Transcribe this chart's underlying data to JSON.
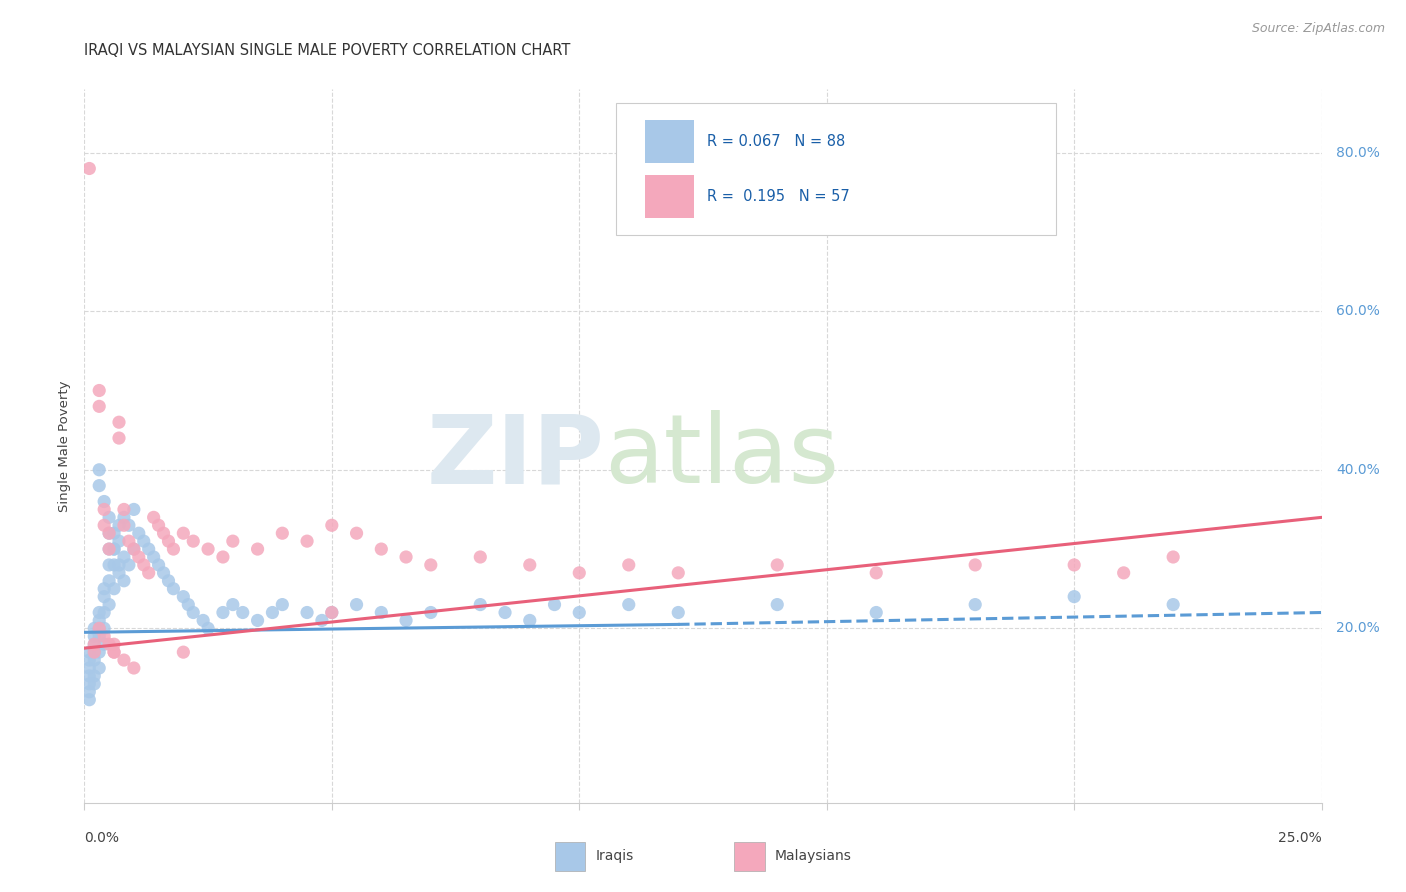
{
  "title": "IRAQI VS MALAYSIAN SINGLE MALE POVERTY CORRELATION CHART",
  "source": "Source: ZipAtlas.com",
  "ylabel": "Single Male Poverty",
  "right_yticks": [
    "80.0%",
    "60.0%",
    "40.0%",
    "20.0%"
  ],
  "right_ytick_vals": [
    0.8,
    0.6,
    0.4,
    0.2
  ],
  "xlim": [
    0.0,
    0.25
  ],
  "ylim": [
    -0.02,
    0.88
  ],
  "iraqis_color": "#a8c8e8",
  "malaysians_color": "#f4a8bc",
  "iraqis_line_color": "#5b9bd5",
  "malaysians_line_color": "#e8607a",
  "background_color": "#ffffff",
  "grid_color": "#d8d8d8",
  "iraqis_R": 0.067,
  "iraqis_N": 88,
  "malaysians_R": 0.195,
  "malaysians_N": 57,
  "iraqis_x": [
    0.001,
    0.001,
    0.001,
    0.001,
    0.001,
    0.001,
    0.001,
    0.002,
    0.002,
    0.002,
    0.002,
    0.002,
    0.002,
    0.002,
    0.003,
    0.003,
    0.003,
    0.003,
    0.003,
    0.003,
    0.004,
    0.004,
    0.004,
    0.004,
    0.004,
    0.005,
    0.005,
    0.005,
    0.005,
    0.006,
    0.006,
    0.006,
    0.006,
    0.007,
    0.007,
    0.007,
    0.008,
    0.008,
    0.009,
    0.009,
    0.01,
    0.01,
    0.011,
    0.012,
    0.013,
    0.014,
    0.015,
    0.016,
    0.017,
    0.018,
    0.02,
    0.021,
    0.022,
    0.024,
    0.025,
    0.028,
    0.03,
    0.032,
    0.035,
    0.038,
    0.04,
    0.045,
    0.048,
    0.05,
    0.055,
    0.06,
    0.065,
    0.07,
    0.08,
    0.085,
    0.09,
    0.095,
    0.1,
    0.11,
    0.12,
    0.14,
    0.16,
    0.18,
    0.2,
    0.22,
    0.003,
    0.003,
    0.004,
    0.005,
    0.005,
    0.006,
    0.007,
    0.008
  ],
  "iraqis_y": [
    0.17,
    0.16,
    0.15,
    0.14,
    0.13,
    0.12,
    0.11,
    0.2,
    0.19,
    0.18,
    0.17,
    0.16,
    0.14,
    0.13,
    0.22,
    0.21,
    0.2,
    0.19,
    0.17,
    0.15,
    0.25,
    0.24,
    0.22,
    0.2,
    0.18,
    0.3,
    0.28,
    0.26,
    0.23,
    0.32,
    0.3,
    0.28,
    0.25,
    0.33,
    0.31,
    0.27,
    0.34,
    0.29,
    0.33,
    0.28,
    0.35,
    0.3,
    0.32,
    0.31,
    0.3,
    0.29,
    0.28,
    0.27,
    0.26,
    0.25,
    0.24,
    0.23,
    0.22,
    0.21,
    0.2,
    0.22,
    0.23,
    0.22,
    0.21,
    0.22,
    0.23,
    0.22,
    0.21,
    0.22,
    0.23,
    0.22,
    0.21,
    0.22,
    0.23,
    0.22,
    0.21,
    0.23,
    0.22,
    0.23,
    0.22,
    0.23,
    0.22,
    0.23,
    0.24,
    0.23,
    0.4,
    0.38,
    0.36,
    0.34,
    0.32,
    0.3,
    0.28,
    0.26
  ],
  "malaysians_x": [
    0.001,
    0.002,
    0.002,
    0.003,
    0.003,
    0.004,
    0.004,
    0.005,
    0.005,
    0.006,
    0.006,
    0.007,
    0.007,
    0.008,
    0.008,
    0.009,
    0.01,
    0.011,
    0.012,
    0.013,
    0.014,
    0.015,
    0.016,
    0.017,
    0.018,
    0.02,
    0.022,
    0.025,
    0.028,
    0.03,
    0.035,
    0.04,
    0.045,
    0.05,
    0.055,
    0.06,
    0.065,
    0.07,
    0.08,
    0.09,
    0.1,
    0.11,
    0.12,
    0.14,
    0.16,
    0.18,
    0.2,
    0.21,
    0.22,
    0.003,
    0.004,
    0.005,
    0.006,
    0.008,
    0.01,
    0.02,
    0.05
  ],
  "malaysians_y": [
    0.78,
    0.18,
    0.17,
    0.5,
    0.48,
    0.35,
    0.33,
    0.32,
    0.3,
    0.18,
    0.17,
    0.46,
    0.44,
    0.35,
    0.33,
    0.31,
    0.3,
    0.29,
    0.28,
    0.27,
    0.34,
    0.33,
    0.32,
    0.31,
    0.3,
    0.32,
    0.31,
    0.3,
    0.29,
    0.31,
    0.3,
    0.32,
    0.31,
    0.33,
    0.32,
    0.3,
    0.29,
    0.28,
    0.29,
    0.28,
    0.27,
    0.28,
    0.27,
    0.28,
    0.27,
    0.28,
    0.28,
    0.27,
    0.29,
    0.2,
    0.19,
    0.18,
    0.17,
    0.16,
    0.15,
    0.17,
    0.22
  ]
}
